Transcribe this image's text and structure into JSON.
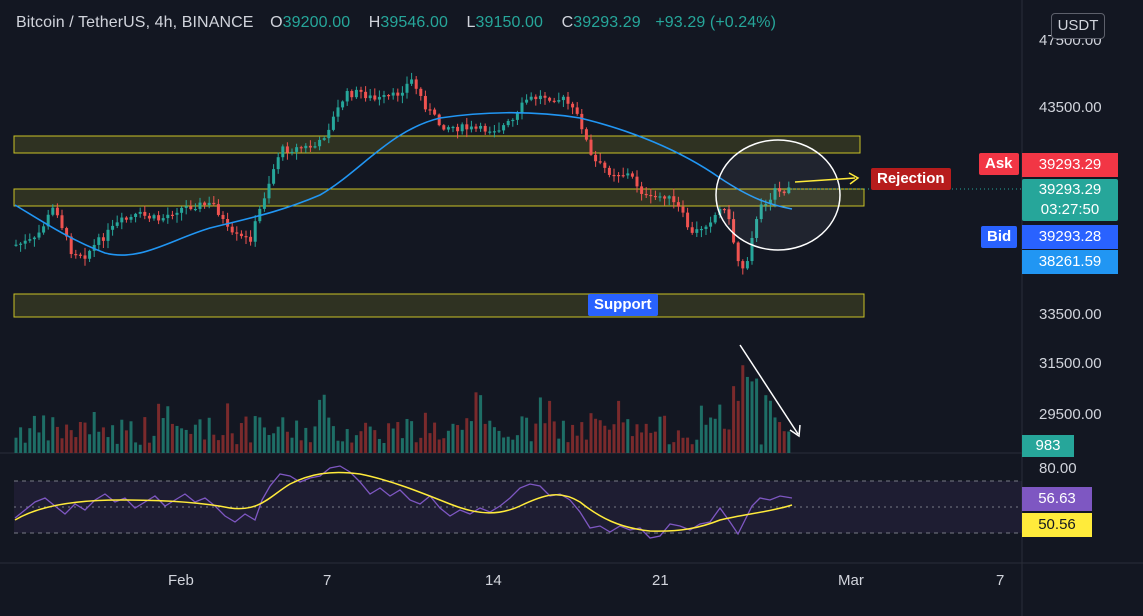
{
  "legend": {
    "symbol": "Bitcoin / TetherUS, 4h, BINANCE",
    "open_label": "O",
    "open": "39200.00",
    "high_label": "H",
    "high": "39546.00",
    "low_label": "L",
    "low": "39150.00",
    "close_label": "C",
    "close": "39293.29",
    "change": "+93.29 (+0.24%)"
  },
  "currency": "USDT",
  "annotations": {
    "rejection": "Rejection",
    "support": "Support"
  },
  "price_scale": {
    "ticks": [
      "47500.00",
      "43500.00",
      "33500.00",
      "31500.00",
      "29500.00"
    ],
    "ask_label": "Ask",
    "ask_price": "39293.29",
    "last_price": "39293.29",
    "countdown": "03:27:50",
    "bid_label": "Bid",
    "bid_price": "39293.28",
    "ma_value": "38261.59",
    "volume_value": "983"
  },
  "rsi": {
    "top_level": "80.00",
    "rsi_value": "56.63",
    "rsi_ma_value": "50.56"
  },
  "time_axis": [
    "Feb",
    "7",
    "14",
    "21",
    "Mar",
    "7"
  ],
  "colors": {
    "up": "#26a69a",
    "down": "#ef5350",
    "ma": "#2196f3",
    "zone": "#c9c225",
    "rsi": "#7e57c2",
    "rsi_ma": "#ffeb3b",
    "ask": "#f23645",
    "bid": "#2962ff",
    "volume_up": "#1e6e66",
    "volume_down": "#7a2a2c"
  },
  "chart_data": {
    "type": "candlestick",
    "interval": "4h",
    "last": {
      "open": 39200.0,
      "high": 39546.0,
      "low": 39150.0,
      "close": 39293.29,
      "volume": 983
    },
    "rsi": {
      "value": 56.63,
      "ma": 50.56,
      "upper": 80
    }
  }
}
